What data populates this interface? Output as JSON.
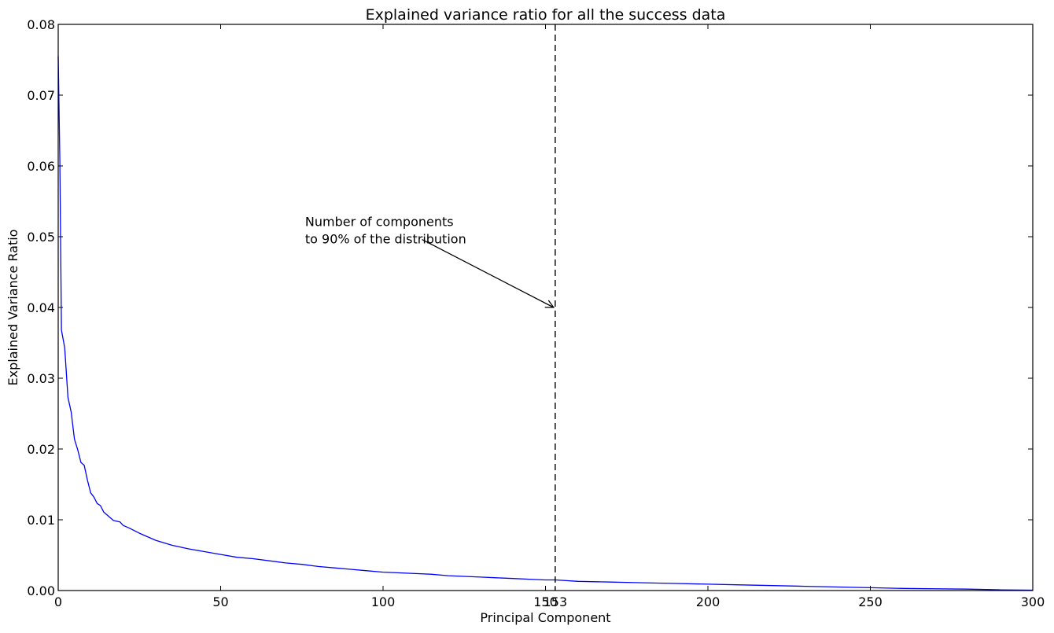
{
  "chart_data": {
    "type": "line",
    "title": "Explained variance ratio for all the success data",
    "xlabel": "Principal Component",
    "ylabel": "Explained Variance Ratio",
    "xlim": [
      0,
      300
    ],
    "ylim": [
      0,
      0.08
    ],
    "xticks": [
      0,
      50,
      100,
      150,
      200,
      250,
      300
    ],
    "xtick_labels": [
      "0",
      "50",
      "100",
      "150",
      "200",
      "250",
      "300"
    ],
    "yticks": [
      0,
      0.01,
      0.02,
      0.03,
      0.04,
      0.05,
      0.06,
      0.07,
      0.08
    ],
    "ytick_labels": [
      "0.00",
      "0.01",
      "0.02",
      "0.03",
      "0.04",
      "0.05",
      "0.06",
      "0.07",
      "0.08"
    ],
    "grid": false,
    "series": [
      {
        "color": "#0000ff",
        "x": [
          0,
          0.5,
          1,
          2,
          3,
          4,
          5,
          6,
          7,
          8,
          9,
          10,
          11,
          12,
          13,
          14,
          15,
          17,
          19,
          20,
          22,
          25,
          28,
          30,
          35,
          40,
          45,
          50,
          55,
          60,
          65,
          70,
          75,
          80,
          85,
          90,
          95,
          100,
          105,
          110,
          115,
          120,
          125,
          130,
          135,
          140,
          145,
          150,
          153,
          160,
          170,
          180,
          190,
          200,
          210,
          220,
          230,
          240,
          250,
          260,
          270,
          280,
          290,
          300
        ],
        "y": [
          0.0755,
          0.061,
          0.0368,
          0.0343,
          0.0273,
          0.0252,
          0.0214,
          0.0199,
          0.0181,
          0.0177,
          0.0156,
          0.0138,
          0.0132,
          0.0123,
          0.012,
          0.0111,
          0.0107,
          0.0099,
          0.0097,
          0.0092,
          0.0088,
          0.0081,
          0.0075,
          0.0071,
          0.0064,
          0.0059,
          0.0055,
          0.0051,
          0.0047,
          0.0045,
          0.0042,
          0.0039,
          0.0037,
          0.0034,
          0.0032,
          0.003,
          0.0028,
          0.0026,
          0.0025,
          0.0024,
          0.0023,
          0.0021,
          0.002,
          0.0019,
          0.0018,
          0.0017,
          0.0016,
          0.0015,
          0.0015,
          0.0013,
          0.0012,
          0.0011,
          0.001,
          0.0009,
          0.0008,
          0.0007,
          0.0006,
          0.0005,
          0.0004,
          0.0003,
          0.00025,
          0.0002,
          0.0001,
          5e-05
        ]
      }
    ],
    "vline": {
      "x": 153,
      "label": "153",
      "style": "dashed",
      "color": "#000000"
    },
    "annotation": {
      "text_lines": [
        "Number of components",
        "to 90% of the distribution"
      ],
      "text_x": 76,
      "text_y": 0.0515,
      "arrow_from": [
        112,
        0.0496
      ],
      "arrow_to": [
        153,
        0.04
      ]
    }
  }
}
